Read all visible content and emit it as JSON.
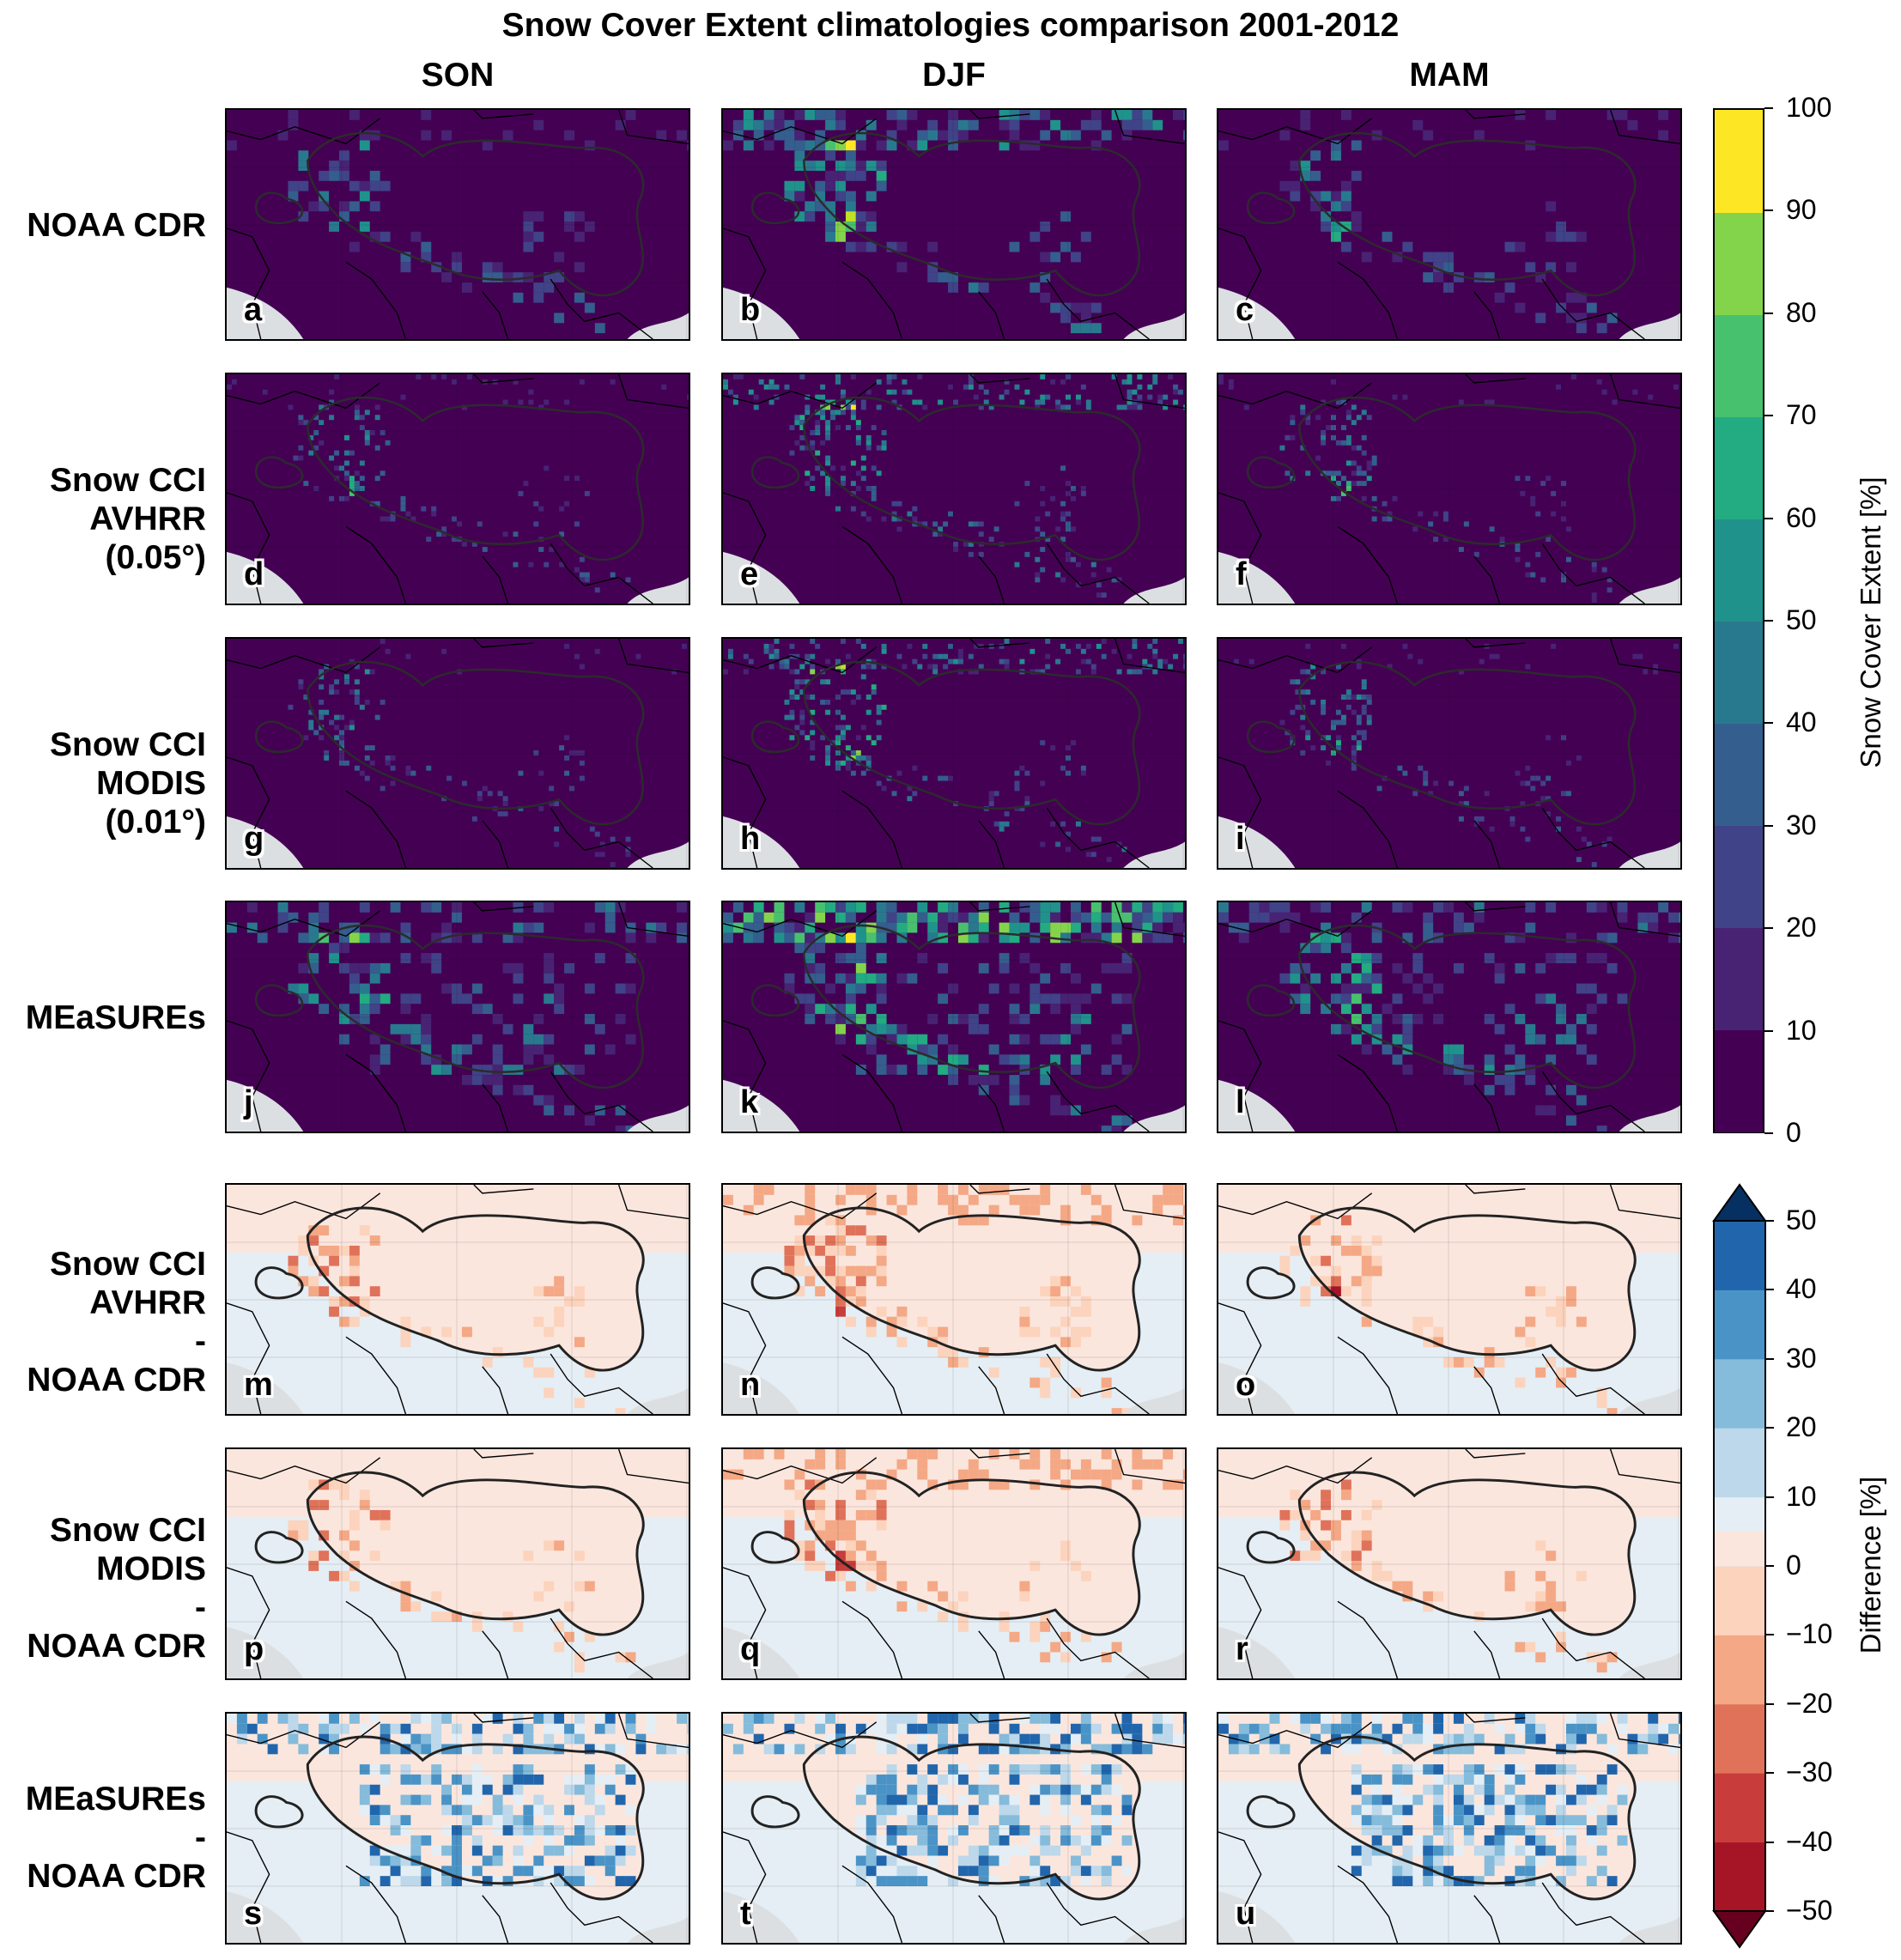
{
  "title": "Snow Cover Extent climatologies comparison 2001-2012",
  "columns": [
    "SON",
    "DJF",
    "MAM"
  ],
  "rows": [
    {
      "label": "NOAA CDR",
      "type": "sce",
      "panels": [
        "a",
        "b",
        "c"
      ]
    },
    {
      "label": "Snow CCI\nAVHRR\n(0.05°)",
      "type": "sce",
      "panels": [
        "d",
        "e",
        "f"
      ]
    },
    {
      "label": "Snow CCI\nMODIS\n(0.01°)",
      "type": "sce",
      "panels": [
        "g",
        "h",
        "i"
      ]
    },
    {
      "label": "MEaSUREs",
      "type": "sce",
      "panels": [
        "j",
        "k",
        "l"
      ]
    },
    {
      "label": "Snow CCI\nAVHRR\n-\nNOAA CDR",
      "type": "diff",
      "panels": [
        "m",
        "n",
        "o"
      ]
    },
    {
      "label": "Snow CCI\nMODIS\n-\nNOAA CDR",
      "type": "diff",
      "panels": [
        "p",
        "q",
        "r"
      ]
    },
    {
      "label": "MEaSUREs\n-\nNOAA CDR",
      "type": "diff",
      "panels": [
        "s",
        "t",
        "u"
      ]
    }
  ],
  "colorbar_sce": {
    "label": "Snow Cover Extent [%]",
    "ticks": [
      "0",
      "10",
      "20",
      "30",
      "40",
      "50",
      "60",
      "70",
      "80",
      "90",
      "100"
    ],
    "colors": [
      "#440154",
      "#482374",
      "#404387",
      "#345e8d",
      "#29798e",
      "#1f928c",
      "#23ab82",
      "#48c16e",
      "#84d44b",
      "#c0df25",
      "#fde725"
    ]
  },
  "colorbar_diff": {
    "label": "Difference [%]",
    "ticks": [
      "−50",
      "−40",
      "−30",
      "−20",
      "−10",
      "0",
      "10",
      "20",
      "30",
      "40",
      "50"
    ],
    "colors": [
      "#a51526",
      "#c83c3b",
      "#e0725a",
      "#f4a885",
      "#fcd3bd",
      "#fbe6dd",
      "#e5eef4",
      "#bcd8ea",
      "#85bbdb",
      "#4a93c6",
      "#2166ac"
    ],
    "extend_low": "#67001f",
    "extend_high": "#053061"
  },
  "map": {
    "ocean_color": "#dcdfe2",
    "sce_background": "#440154",
    "diff_background_north": "#fbe6dd",
    "diff_background_south": "#e5eef4"
  }
}
